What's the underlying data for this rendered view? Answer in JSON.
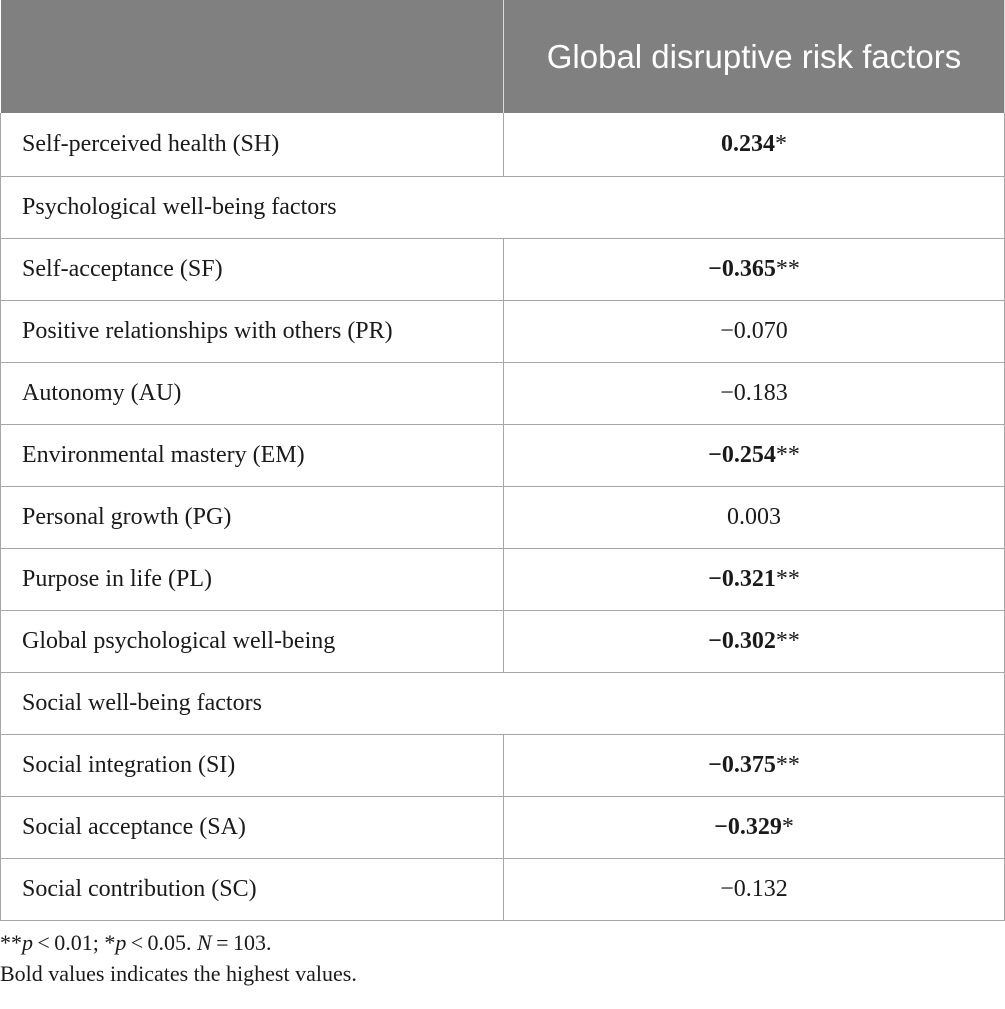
{
  "table": {
    "header": {
      "col1": "",
      "col2": "Global disruptive risk factors"
    },
    "rows": [
      {
        "type": "data",
        "label": "Self-perceived health (SH)",
        "value": "0.234",
        "sig": "*",
        "bold": true
      },
      {
        "type": "section",
        "label": "Psychological well-being factors"
      },
      {
        "type": "data",
        "label": "Self-acceptance (SF)",
        "value": "−0.365",
        "sig": "**",
        "bold": true
      },
      {
        "type": "data",
        "label": "Positive relationships with others (PR)",
        "value": "−0.070",
        "sig": "",
        "bold": false
      },
      {
        "type": "data",
        "label": "Autonomy (AU)",
        "value": "−0.183",
        "sig": "",
        "bold": false
      },
      {
        "type": "data",
        "label": "Environmental mastery (EM)",
        "value": "−0.254",
        "sig": "**",
        "bold": true
      },
      {
        "type": "data",
        "label": "Personal growth (PG)",
        "value": "0.003",
        "sig": "",
        "bold": false
      },
      {
        "type": "data",
        "label": "Purpose in life (PL)",
        "value": "−0.321",
        "sig": "**",
        "bold": true
      },
      {
        "type": "data",
        "label": "Global psychological well-being",
        "value": "−0.302",
        "sig": "**",
        "bold": true
      },
      {
        "type": "section",
        "label": "Social well-being factors"
      },
      {
        "type": "data",
        "label": "Social integration (SI)",
        "value": "−0.375",
        "sig": "**",
        "bold": true
      },
      {
        "type": "data",
        "label": "Social acceptance (SA)",
        "value": "−0.329",
        "sig": "*",
        "bold": true
      },
      {
        "type": "data",
        "label": "Social contribution (SC)",
        "value": "−0.132",
        "sig": "",
        "bold": false
      }
    ]
  },
  "footnotes": {
    "line1_a": "**",
    "line1_p1": "p",
    "line1_b": " < 0.01; *",
    "line1_p2": "p",
    "line1_c": " < 0.05. ",
    "line1_n": "N",
    "line1_d": " = 103.",
    "line2": "Bold values indicates the highest values."
  }
}
